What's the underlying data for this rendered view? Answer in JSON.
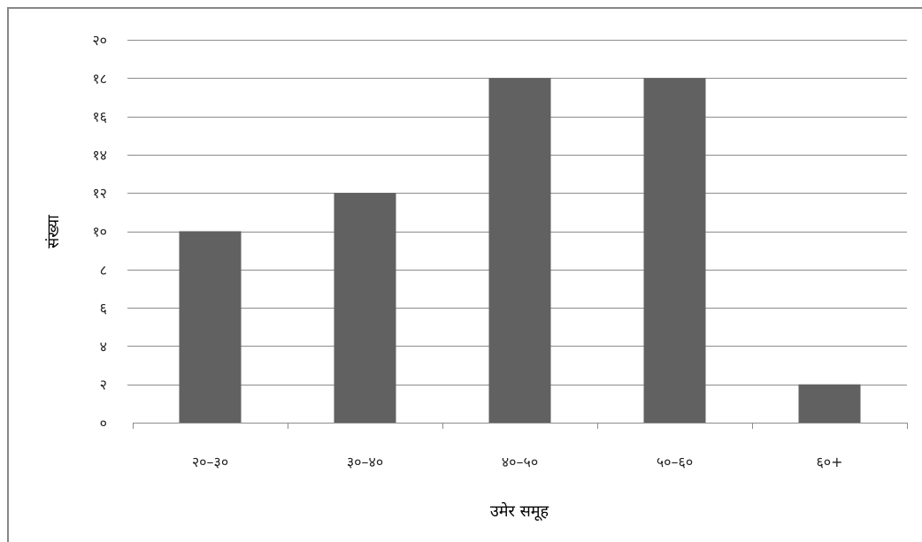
{
  "chart_data": {
    "type": "bar",
    "title": "",
    "xlabel": "उमेर समूह",
    "ylabel": "संख्या",
    "categories": [
      "२०–३०",
      "३०–४०",
      "४०–५०",
      "५०–६०",
      "६०+"
    ],
    "values": [
      10,
      12,
      18,
      18,
      2
    ],
    "ylim": [
      0,
      20
    ],
    "ytick_values": [
      0,
      2,
      4,
      6,
      8,
      10,
      12,
      14,
      16,
      18,
      20
    ],
    "ytick_labels": [
      "०",
      "२",
      "४",
      "६",
      "८",
      "१०",
      "१२",
      "१४",
      "१६",
      "१८",
      "२०"
    ],
    "grid": true,
    "legend": "none",
    "bar_color": "#616161",
    "grid_color": "#8c8c8c"
  }
}
